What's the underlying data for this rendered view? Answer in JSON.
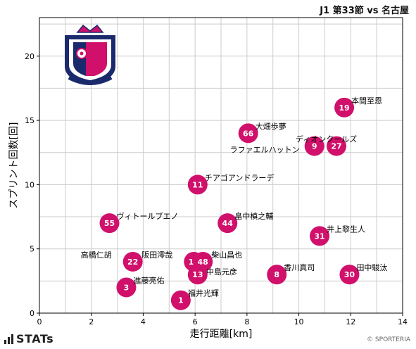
{
  "match_title": "J1 第33節 vs 名古屋",
  "brand": "STATs",
  "credit": "© SPORTERIA",
  "colors": {
    "point": "#d0106a",
    "point_text": "#ffffff",
    "grid": "#cccccc"
  },
  "chart_data": {
    "type": "scatter",
    "xlabel": "走行距離[km]",
    "ylabel": "スプリント回数[回]",
    "xlim": [
      0,
      14
    ],
    "ylim": [
      0,
      23
    ],
    "xticks": [
      0,
      2,
      4,
      6,
      8,
      10,
      12,
      14
    ],
    "yticks": [
      0,
      5,
      10,
      15,
      20
    ],
    "grid": true,
    "points": [
      {
        "number": "19",
        "name": "本間至恩",
        "x": 11.75,
        "y": 16
      },
      {
        "number": "66",
        "name": "大畑歩夢",
        "x": 8.05,
        "y": 14
      },
      {
        "number": "9",
        "name": "ラファエルハットン",
        "x": 10.6,
        "y": 13
      },
      {
        "number": "27",
        "name": "ディオンクールズ",
        "x": 11.45,
        "y": 13
      },
      {
        "number": "11",
        "name": "チアゴアンドラーデ",
        "x": 6.1,
        "y": 10
      },
      {
        "number": "55",
        "name": "ヴィトールブエノ",
        "x": 2.7,
        "y": 7
      },
      {
        "number": "44",
        "name": "畠中槙之輔",
        "x": 7.25,
        "y": 7
      },
      {
        "number": "31",
        "name": "井上黎生人",
        "x": 10.8,
        "y": 6
      },
      {
        "number": "22",
        "name": "高橋仁胡",
        "x": 3.6,
        "y": 4
      },
      {
        "number": "17",
        "name": "阪田澪哉",
        "x": 5.95,
        "y": 4
      },
      {
        "number": "48",
        "name": "柴山昌也",
        "x": 6.3,
        "y": 4
      },
      {
        "number": "13",
        "name": "中島元彦",
        "x": 6.1,
        "y": 3
      },
      {
        "number": "8",
        "name": "香川真司",
        "x": 9.15,
        "y": 3
      },
      {
        "number": "30",
        "name": "田中駿汰",
        "x": 11.95,
        "y": 3
      },
      {
        "number": "3",
        "name": "進藤亮佑",
        "x": 3.35,
        "y": 2
      },
      {
        "number": "1",
        "name": "福井光輝",
        "x": 5.45,
        "y": 1
      }
    ]
  }
}
